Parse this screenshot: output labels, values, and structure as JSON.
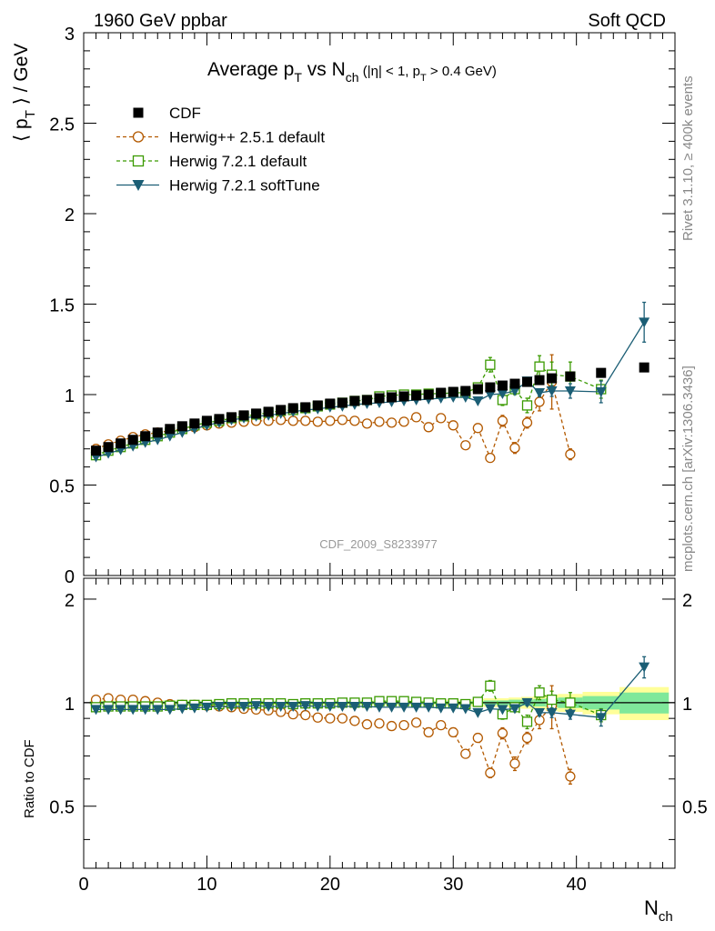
{
  "header": {
    "left_label": "1960 GeV ppbar",
    "right_label": "Soft QCD"
  },
  "side": {
    "rivet": "Rivet 3.1.10, ≥ 400k events",
    "mcplots": "mcplots.cern.ch [arXiv:1306.3436]"
  },
  "chart_data": [
    {
      "type": "scatter",
      "panel": "main",
      "title_main": "Average p",
      "title_sub_T": "T",
      "title_vs": " vs N",
      "title_sub_ch": "ch",
      "title_cuts_a": " (|η| < 1, p",
      "title_cuts_sub": "T",
      "title_cuts_b": " > 0.4 GeV)",
      "ylabel_a": "⟨ p",
      "ylabel_sub": "T",
      "ylabel_b": " ⟩ / GeV",
      "watermark": "CDF_2009_S8233977",
      "xlim": [
        0,
        48
      ],
      "ylim": [
        0,
        3
      ],
      "yticks": [
        0,
        0.5,
        1,
        1.5,
        2,
        2.5,
        3
      ],
      "ytick_labels": [
        "0",
        "0.5",
        "1",
        "1.5",
        "2",
        "2.5",
        "3"
      ],
      "legend_position": "top-left",
      "series": [
        {
          "name": "CDF",
          "style": "data",
          "color": "#000000",
          "x": [
            1,
            2,
            3,
            4,
            5,
            6,
            7,
            8,
            9,
            10,
            11,
            12,
            13,
            14,
            15,
            16,
            17,
            18,
            19,
            20,
            21,
            22,
            23,
            24,
            25,
            26,
            27,
            28,
            29,
            30,
            31,
            32,
            33,
            34,
            35,
            36,
            37,
            38,
            39.5,
            42,
            45.5
          ],
          "y": [
            0.69,
            0.71,
            0.73,
            0.75,
            0.77,
            0.79,
            0.81,
            0.825,
            0.84,
            0.855,
            0.865,
            0.875,
            0.885,
            0.895,
            0.905,
            0.915,
            0.925,
            0.93,
            0.94,
            0.95,
            0.955,
            0.965,
            0.97,
            0.98,
            0.985,
            0.99,
            0.995,
            1.0,
            1.01,
            1.015,
            1.02,
            1.03,
            1.04,
            1.05,
            1.06,
            1.07,
            1.08,
            1.09,
            1.1,
            1.12,
            1.15
          ]
        },
        {
          "name": "Herwig++ 2.5.1 default",
          "style": "circle-dashed",
          "color": "#b35900",
          "x": [
            1,
            2,
            3,
            4,
            5,
            6,
            7,
            8,
            9,
            10,
            11,
            12,
            13,
            14,
            15,
            16,
            17,
            18,
            19,
            20,
            21,
            22,
            23,
            24,
            25,
            26,
            27,
            28,
            29,
            30,
            31,
            32,
            33,
            34,
            35,
            36,
            37,
            38,
            39.5
          ],
          "y": [
            0.7,
            0.725,
            0.745,
            0.765,
            0.78,
            0.79,
            0.8,
            0.81,
            0.82,
            0.83,
            0.84,
            0.845,
            0.85,
            0.855,
            0.855,
            0.86,
            0.855,
            0.855,
            0.85,
            0.855,
            0.86,
            0.855,
            0.84,
            0.85,
            0.845,
            0.85,
            0.875,
            0.82,
            0.87,
            0.83,
            0.72,
            0.815,
            0.65,
            0.855,
            0.705,
            0.845,
            0.96,
            1.07,
            0.67
          ],
          "err": [
            0,
            0,
            0,
            0,
            0,
            0,
            0,
            0,
            0,
            0,
            0,
            0,
            0,
            0,
            0,
            0,
            0,
            0,
            0,
            0,
            0,
            0,
            0,
            0,
            0,
            0,
            0.01,
            0.01,
            0.01,
            0.015,
            0.02,
            0.02,
            0.02,
            0.03,
            0.03,
            0.03,
            0.05,
            0.15,
            0.03
          ]
        },
        {
          "name": "Herwig 7.2.1 default",
          "style": "square-dashed",
          "color": "#3a9a00",
          "x": [
            1,
            2,
            3,
            4,
            5,
            6,
            7,
            8,
            9,
            10,
            11,
            12,
            13,
            14,
            15,
            16,
            17,
            18,
            19,
            20,
            21,
            22,
            23,
            24,
            25,
            26,
            27,
            28,
            29,
            30,
            31,
            32,
            33,
            34,
            35,
            36,
            37,
            38,
            39.5,
            42
          ],
          "y": [
            0.665,
            0.69,
            0.71,
            0.73,
            0.75,
            0.77,
            0.79,
            0.81,
            0.83,
            0.845,
            0.855,
            0.87,
            0.88,
            0.89,
            0.9,
            0.91,
            0.915,
            0.925,
            0.935,
            0.945,
            0.955,
            0.965,
            0.97,
            0.99,
            0.995,
            1.0,
            1.0,
            1.005,
            1.005,
            1.01,
            1.01,
            1.04,
            1.165,
            0.97,
            1.03,
            0.94,
            1.155,
            1.11,
            1.1,
            1.03
          ],
          "err": [
            0,
            0,
            0,
            0,
            0,
            0,
            0,
            0,
            0,
            0,
            0,
            0,
            0,
            0,
            0,
            0,
            0,
            0,
            0,
            0,
            0,
            0,
            0,
            0,
            0,
            0,
            0,
            0,
            0,
            0,
            0.01,
            0.015,
            0.04,
            0.03,
            0.03,
            0.04,
            0.06,
            0.07,
            0.08,
            0.05
          ]
        },
        {
          "name": "Herwig 7.2.1 softTune",
          "style": "triangle-solid",
          "color": "#1b5e75",
          "x": [
            1,
            2,
            3,
            4,
            5,
            6,
            7,
            8,
            9,
            10,
            11,
            12,
            13,
            14,
            15,
            16,
            17,
            18,
            19,
            20,
            21,
            22,
            23,
            24,
            25,
            26,
            27,
            28,
            29,
            30,
            31,
            32,
            33,
            34,
            35,
            36,
            37,
            38,
            39.5,
            42,
            45.5
          ],
          "y": [
            0.655,
            0.675,
            0.695,
            0.715,
            0.735,
            0.75,
            0.77,
            0.79,
            0.81,
            0.83,
            0.845,
            0.86,
            0.87,
            0.88,
            0.885,
            0.895,
            0.905,
            0.915,
            0.92,
            0.93,
            0.935,
            0.945,
            0.95,
            0.955,
            0.96,
            0.965,
            0.97,
            0.975,
            0.98,
            0.985,
            0.985,
            0.965,
            1.0,
            1.005,
            1.02,
            1.075,
            1.01,
            1.02,
            1.02,
            1.015,
            1.4
          ],
          "err": [
            0,
            0,
            0,
            0,
            0,
            0,
            0,
            0,
            0,
            0,
            0,
            0,
            0,
            0,
            0,
            0,
            0,
            0,
            0,
            0,
            0,
            0,
            0,
            0,
            0,
            0,
            0,
            0,
            0,
            0,
            0,
            0,
            0,
            0,
            0,
            0.02,
            0.02,
            0.03,
            0.04,
            0.06,
            0.11
          ]
        }
      ]
    },
    {
      "type": "scatter",
      "panel": "ratio",
      "ylabel": "Ratio to CDF",
      "xlabel_a": "N",
      "xlabel_sub": "ch",
      "xlim": [
        0,
        48
      ],
      "xticks": [
        0,
        10,
        20,
        30,
        40
      ],
      "xtick_labels": [
        "0",
        "10",
        "20",
        "30",
        "40"
      ],
      "ylim": [
        0.33,
        2.3
      ],
      "yticks": [
        0.5,
        1,
        2
      ],
      "ytick_labels": [
        "0.5",
        "1",
        "2"
      ],
      "band_edges": [
        0.5,
        1.5,
        2.5,
        3.5,
        4.5,
        5.5,
        6.5,
        7.5,
        8.5,
        9.5,
        10.5,
        11.5,
        12.5,
        13.5,
        14.5,
        15.5,
        16.5,
        17.5,
        18.5,
        19.5,
        20.5,
        21.5,
        22.5,
        23.5,
        24.5,
        25.5,
        26.5,
        27.5,
        28.5,
        29.5,
        30.5,
        31.5,
        32.5,
        33.5,
        34.5,
        35.5,
        36.5,
        37.5,
        38.5,
        40.5,
        43.5,
        47.5
      ],
      "band_inner": [
        0.01,
        0.01,
        0.01,
        0.01,
        0.01,
        0.01,
        0.01,
        0.01,
        0.01,
        0.01,
        0.01,
        0.01,
        0.01,
        0.01,
        0.01,
        0.01,
        0.01,
        0.01,
        0.01,
        0.01,
        0.01,
        0.01,
        0.01,
        0.01,
        0.01,
        0.01,
        0.01,
        0.01,
        0.01,
        0.01,
        0.01,
        0.01,
        0.015,
        0.015,
        0.02,
        0.02,
        0.025,
        0.03,
        0.035,
        0.045,
        0.07
      ],
      "band_outer": [
        0.015,
        0.015,
        0.015,
        0.015,
        0.015,
        0.015,
        0.015,
        0.015,
        0.015,
        0.015,
        0.015,
        0.015,
        0.015,
        0.015,
        0.015,
        0.015,
        0.015,
        0.015,
        0.015,
        0.015,
        0.015,
        0.015,
        0.015,
        0.015,
        0.015,
        0.015,
        0.015,
        0.015,
        0.02,
        0.02,
        0.02,
        0.025,
        0.03,
        0.03,
        0.035,
        0.04,
        0.045,
        0.055,
        0.06,
        0.075,
        0.11
      ],
      "band_inner_color": "#7fe89a",
      "band_outer_color": "#ffff99",
      "series": [
        {
          "name": "Herwig++ 2.5.1 default",
          "style": "circle-dashed",
          "color": "#b35900",
          "x": [
            1,
            2,
            3,
            4,
            5,
            6,
            7,
            8,
            9,
            10,
            11,
            12,
            13,
            14,
            15,
            16,
            17,
            18,
            19,
            20,
            21,
            22,
            23,
            24,
            25,
            26,
            27,
            28,
            29,
            30,
            31,
            32,
            33,
            34,
            35,
            36,
            37,
            38,
            39.5
          ],
          "y": [
            1.02,
            1.03,
            1.02,
            1.02,
            1.01,
            1.0,
            0.99,
            0.985,
            0.985,
            0.98,
            0.975,
            0.97,
            0.96,
            0.955,
            0.95,
            0.94,
            0.925,
            0.92,
            0.905,
            0.9,
            0.9,
            0.885,
            0.865,
            0.87,
            0.855,
            0.86,
            0.875,
            0.82,
            0.86,
            0.82,
            0.71,
            0.79,
            0.625,
            0.815,
            0.665,
            0.79,
            0.89,
            0.98,
            0.61
          ],
          "err": [
            0,
            0,
            0,
            0,
            0,
            0,
            0,
            0,
            0,
            0,
            0,
            0,
            0,
            0,
            0,
            0,
            0,
            0,
            0,
            0,
            0,
            0,
            0,
            0,
            0,
            0,
            0.01,
            0.01,
            0.01,
            0.015,
            0.02,
            0.02,
            0.02,
            0.03,
            0.03,
            0.03,
            0.05,
            0.14,
            0.03
          ]
        },
        {
          "name": "Herwig 7.2.1 default",
          "style": "square-dashed",
          "color": "#3a9a00",
          "x": [
            1,
            2,
            3,
            4,
            5,
            6,
            7,
            8,
            9,
            10,
            11,
            12,
            13,
            14,
            15,
            16,
            17,
            18,
            19,
            20,
            21,
            22,
            23,
            24,
            25,
            26,
            27,
            28,
            29,
            30,
            31,
            32,
            33,
            34,
            35,
            36,
            37,
            38,
            39.5,
            42
          ],
          "y": [
            0.97,
            0.975,
            0.975,
            0.975,
            0.975,
            0.975,
            0.98,
            0.985,
            0.985,
            0.985,
            0.99,
            0.995,
            0.995,
            0.995,
            0.995,
            0.995,
            0.99,
            0.995,
            0.995,
            0.995,
            1.0,
            1.0,
            1.0,
            1.01,
            1.01,
            1.01,
            1.005,
            1.0,
            0.995,
            0.995,
            0.99,
            1.005,
            1.12,
            0.925,
            0.97,
            0.88,
            1.07,
            1.02,
            1.0,
            0.92
          ],
          "err": [
            0,
            0,
            0,
            0,
            0,
            0,
            0,
            0,
            0,
            0,
            0,
            0,
            0,
            0,
            0,
            0,
            0,
            0,
            0,
            0,
            0,
            0,
            0,
            0,
            0,
            0,
            0,
            0,
            0,
            0,
            0.01,
            0.015,
            0.04,
            0.03,
            0.03,
            0.04,
            0.05,
            0.06,
            0.07,
            0.04
          ]
        },
        {
          "name": "Herwig 7.2.1 softTune",
          "style": "triangle-solid",
          "color": "#1b5e75",
          "x": [
            1,
            2,
            3,
            4,
            5,
            6,
            7,
            8,
            9,
            10,
            11,
            12,
            13,
            14,
            15,
            16,
            17,
            18,
            19,
            20,
            21,
            22,
            23,
            24,
            25,
            26,
            27,
            28,
            29,
            30,
            31,
            32,
            33,
            34,
            35,
            36,
            37,
            38,
            39.5,
            42,
            45.5
          ],
          "y": [
            0.955,
            0.955,
            0.955,
            0.955,
            0.955,
            0.955,
            0.955,
            0.96,
            0.965,
            0.97,
            0.975,
            0.975,
            0.975,
            0.98,
            0.975,
            0.975,
            0.975,
            0.98,
            0.975,
            0.975,
            0.975,
            0.975,
            0.975,
            0.97,
            0.97,
            0.97,
            0.97,
            0.97,
            0.965,
            0.965,
            0.96,
            0.935,
            0.96,
            0.955,
            0.96,
            1.0,
            0.935,
            0.935,
            0.925,
            0.905,
            1.27
          ],
          "err": [
            0,
            0,
            0,
            0,
            0,
            0,
            0,
            0,
            0,
            0,
            0,
            0,
            0,
            0,
            0,
            0,
            0,
            0,
            0,
            0,
            0,
            0,
            0,
            0,
            0,
            0,
            0,
            0,
            0,
            0,
            0,
            0,
            0,
            0,
            0,
            0.02,
            0.02,
            0.03,
            0.03,
            0.05,
            0.09
          ]
        }
      ]
    }
  ]
}
